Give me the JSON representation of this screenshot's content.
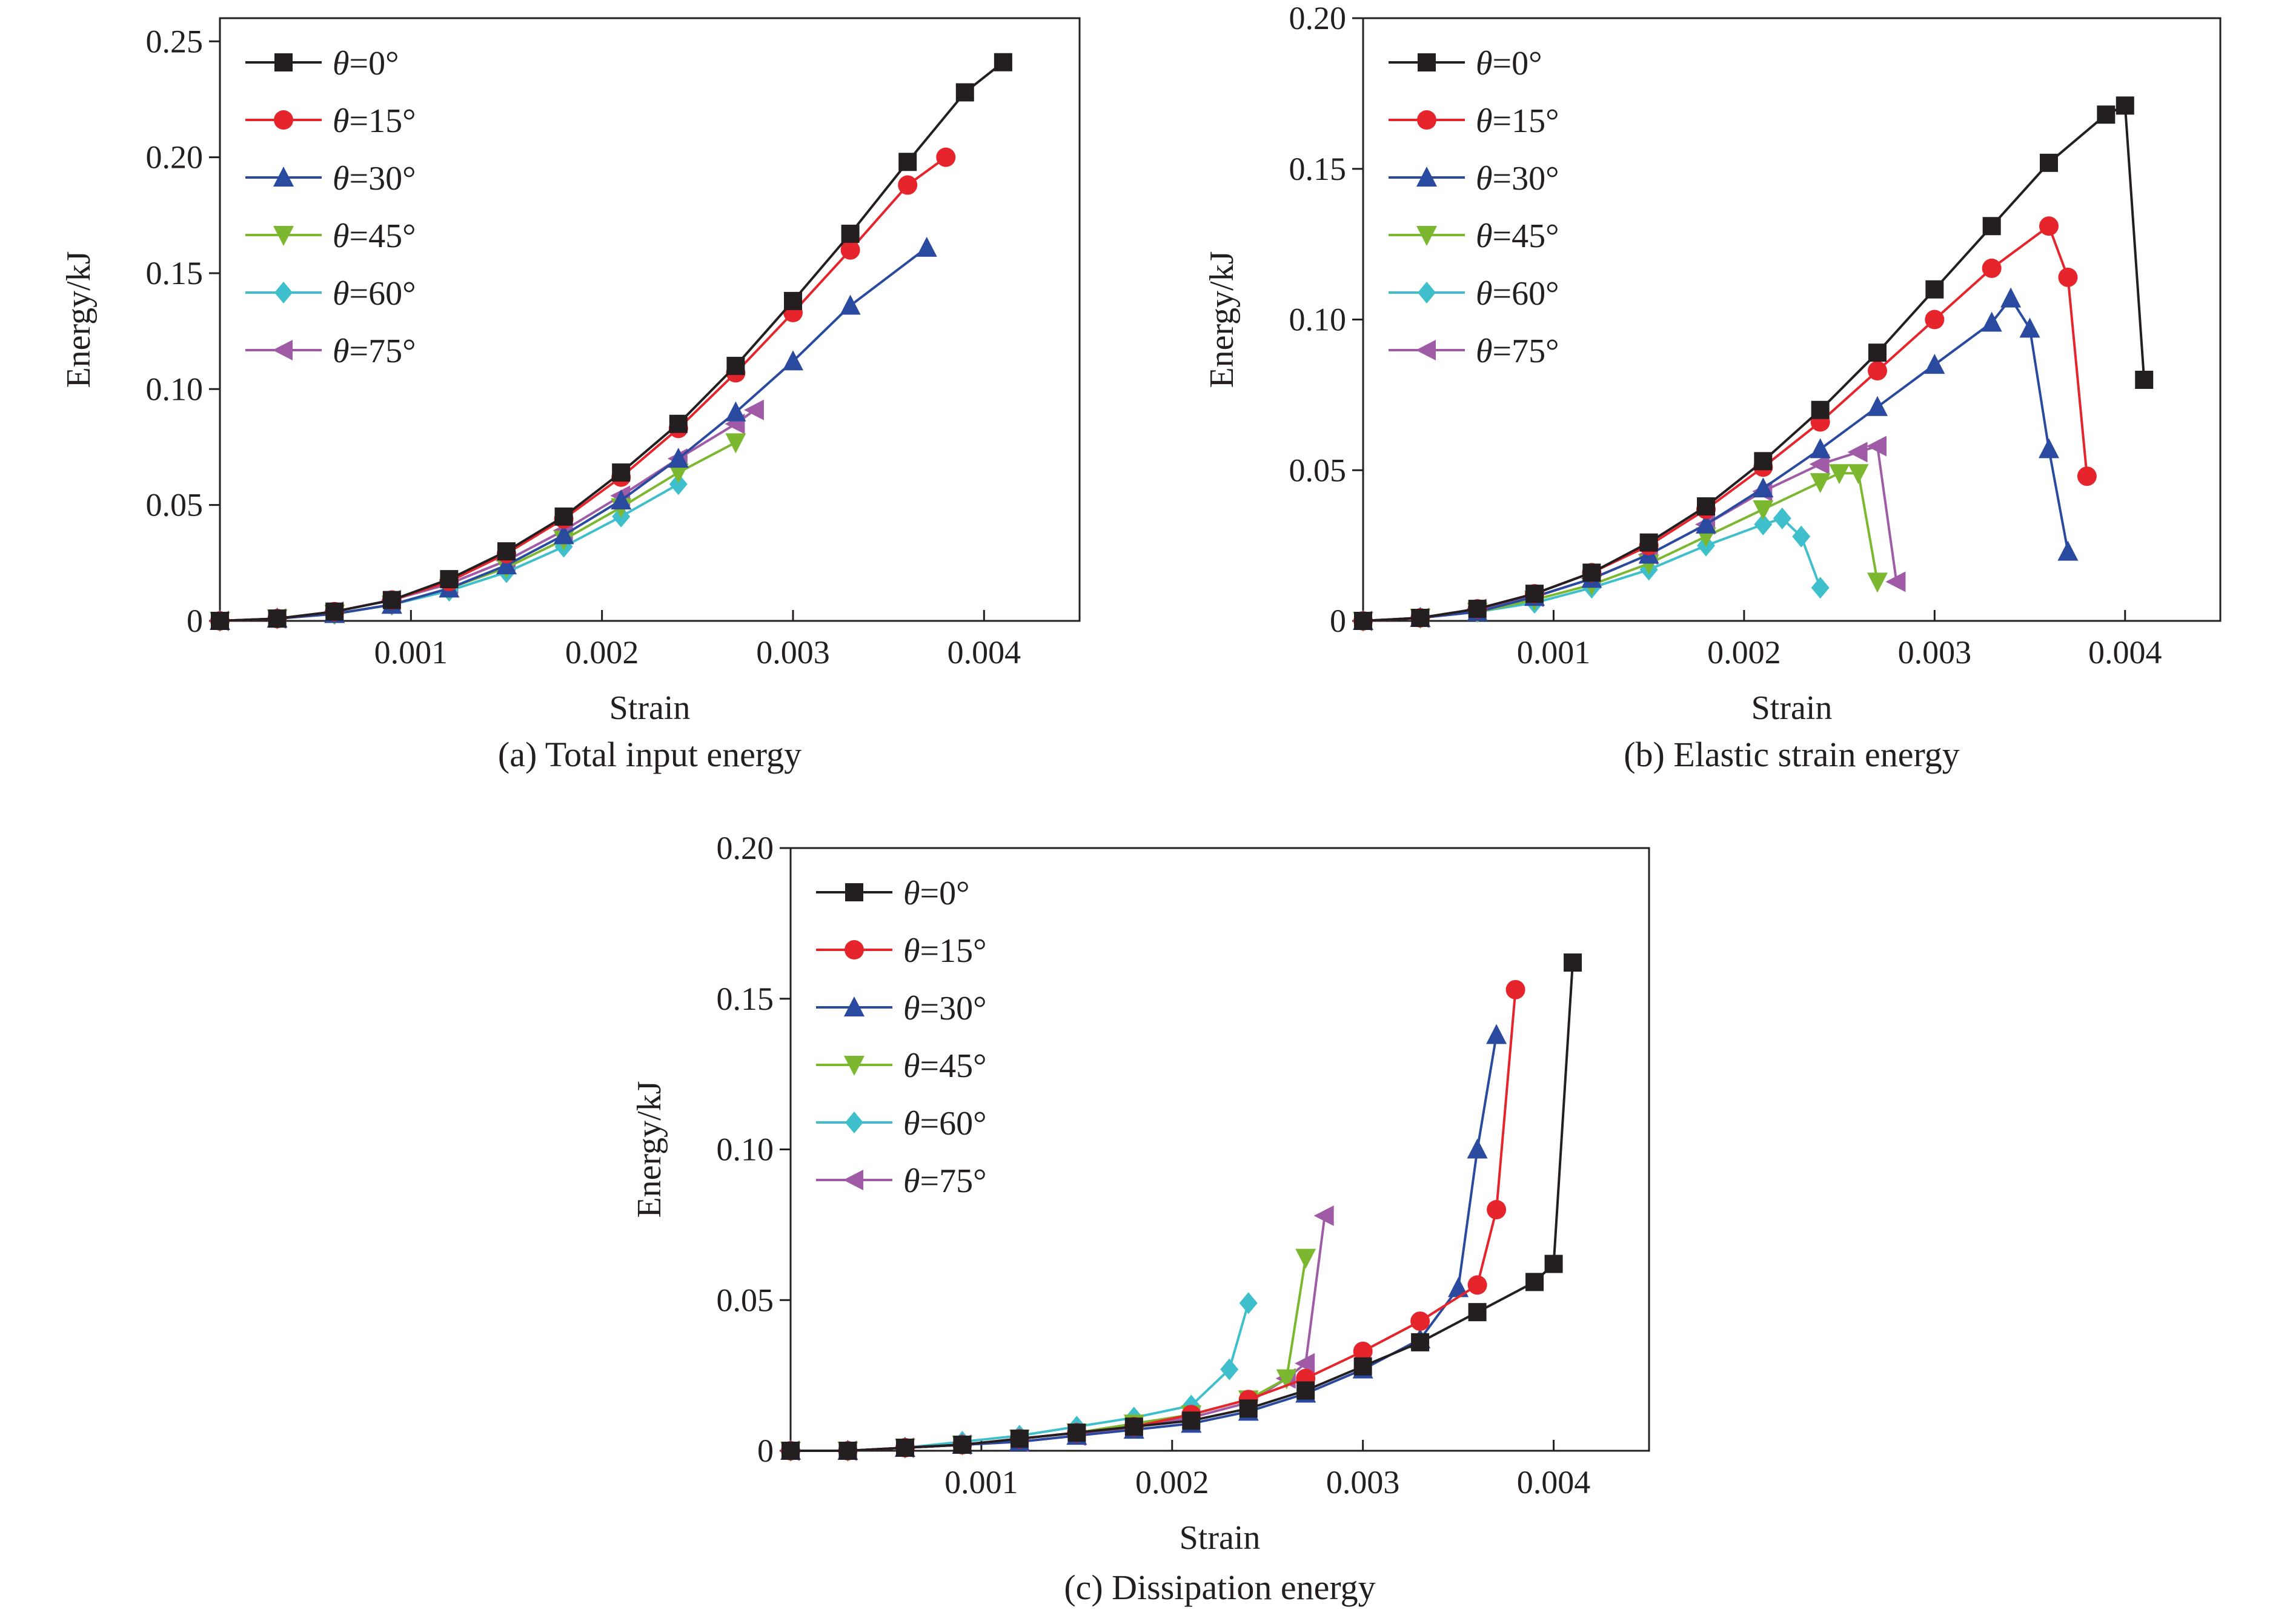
{
  "figure": {
    "charts": [
      {
        "id": "a",
        "caption": "(a) Total input energy",
        "xlabel": "Strain",
        "ylabel": "Energy/kJ",
        "xlim": [
          0,
          0.0045
        ],
        "ylim": [
          0,
          0.26
        ],
        "xticks": [
          "0.001",
          "0.002",
          "0.003",
          "0.004"
        ],
        "xtick_values": [
          0.001,
          0.002,
          0.003,
          0.004
        ],
        "yticks": [
          "0",
          "0.05",
          "0.10",
          "0.15",
          "0.20",
          "0.25"
        ],
        "ytick_values": [
          0,
          0.05,
          0.1,
          0.15,
          0.2,
          0.25
        ]
      },
      {
        "id": "b",
        "caption": "(b) Elastic strain energy",
        "xlabel": "Strain",
        "ylabel": "Energy/kJ",
        "xlim": [
          0,
          0.0045
        ],
        "ylim": [
          0,
          0.2
        ],
        "xticks": [
          "0.001",
          "0.002",
          "0.003",
          "0.004"
        ],
        "xtick_values": [
          0.001,
          0.002,
          0.003,
          0.004
        ],
        "yticks": [
          "0",
          "0.05",
          "0.10",
          "0.15",
          "0.20"
        ],
        "ytick_values": [
          0,
          0.05,
          0.1,
          0.15,
          0.2
        ]
      },
      {
        "id": "c",
        "caption": "(c) Dissipation energy",
        "xlabel": "Strain",
        "ylabel": "Energy/kJ",
        "xlim": [
          0,
          0.0045
        ],
        "ylim": [
          0,
          0.2
        ],
        "xticks": [
          "0.001",
          "0.002",
          "0.003",
          "0.004"
        ],
        "xtick_values": [
          0.001,
          0.002,
          0.003,
          0.004
        ],
        "yticks": [
          "0",
          "0.05",
          "0.10",
          "0.15",
          "0.20"
        ],
        "ytick_values": [
          0,
          0.05,
          0.1,
          0.15,
          0.2
        ]
      }
    ]
  },
  "chart_data": [
    {
      "type": "line",
      "title": "(a) Total input energy",
      "xlabel": "Strain",
      "ylabel": "Energy/kJ",
      "xlim": [
        0,
        0.0045
      ],
      "ylim": [
        0,
        0.26
      ],
      "grid": false,
      "legend": "top-left",
      "series": [
        {
          "name": "θ=0°",
          "symbol": "=0°",
          "color": "#231f20",
          "marker": "square",
          "x": [
            0.0,
            0.0003,
            0.0006,
            0.0009,
            0.0012,
            0.0015,
            0.0018,
            0.0021,
            0.0024,
            0.0027,
            0.003,
            0.0033,
            0.0036,
            0.0039,
            0.0041
          ],
          "y": [
            0.0,
            0.001,
            0.004,
            0.009,
            0.018,
            0.03,
            0.045,
            0.064,
            0.085,
            0.11,
            0.138,
            0.167,
            0.198,
            0.228,
            0.241
          ]
        },
        {
          "name": "θ=15°",
          "symbol": "=15°",
          "color": "#e6242b",
          "marker": "circle",
          "x": [
            0.0,
            0.0003,
            0.0006,
            0.0009,
            0.0012,
            0.0015,
            0.0018,
            0.0021,
            0.0024,
            0.0027,
            0.003,
            0.0033,
            0.0036,
            0.0038
          ],
          "y": [
            0.0,
            0.001,
            0.004,
            0.009,
            0.017,
            0.029,
            0.044,
            0.062,
            0.083,
            0.107,
            0.133,
            0.16,
            0.188,
            0.2
          ]
        },
        {
          "name": "θ=30°",
          "symbol": "=30°",
          "color": "#2a4a9f",
          "marker": "triangle-up",
          "x": [
            0.0,
            0.0003,
            0.0006,
            0.0009,
            0.0012,
            0.0015,
            0.0018,
            0.0021,
            0.0024,
            0.0027,
            0.003,
            0.0033,
            0.0037
          ],
          "y": [
            0.0,
            0.001,
            0.003,
            0.007,
            0.014,
            0.024,
            0.037,
            0.052,
            0.07,
            0.09,
            0.112,
            0.136,
            0.161
          ]
        },
        {
          "name": "θ=45°",
          "symbol": "=45°",
          "color": "#7cb82f",
          "marker": "triangle-down",
          "x": [
            0.0,
            0.0003,
            0.0006,
            0.0009,
            0.0012,
            0.0015,
            0.0018,
            0.0021,
            0.0024,
            0.0027
          ],
          "y": [
            0.0,
            0.001,
            0.003,
            0.007,
            0.014,
            0.023,
            0.035,
            0.049,
            0.064,
            0.077
          ]
        },
        {
          "name": "θ=60°",
          "symbol": "=60°",
          "color": "#3fbfcb",
          "marker": "diamond",
          "x": [
            0.0,
            0.0003,
            0.0006,
            0.0009,
            0.0012,
            0.0015,
            0.0018,
            0.0021,
            0.0024
          ],
          "y": [
            0.0,
            0.001,
            0.003,
            0.007,
            0.013,
            0.021,
            0.032,
            0.045,
            0.059
          ]
        },
        {
          "name": "θ=75°",
          "symbol": "=75°",
          "color": "#a05ba7",
          "marker": "triangle-left",
          "x": [
            0.0,
            0.0003,
            0.0006,
            0.0009,
            0.0012,
            0.0015,
            0.0018,
            0.0021,
            0.0024,
            0.0027,
            0.0028
          ],
          "y": [
            0.0,
            0.001,
            0.004,
            0.009,
            0.016,
            0.026,
            0.039,
            0.054,
            0.07,
            0.085,
            0.091
          ]
        }
      ]
    },
    {
      "type": "line",
      "title": "(b) Elastic strain energy",
      "xlabel": "Strain",
      "ylabel": "Energy/kJ",
      "xlim": [
        0,
        0.0045
      ],
      "ylim": [
        0,
        0.2
      ],
      "grid": false,
      "legend": "top-left",
      "series": [
        {
          "name": "θ=0°",
          "symbol": "=0°",
          "color": "#231f20",
          "marker": "square",
          "x": [
            0.0,
            0.0003,
            0.0006,
            0.0009,
            0.0012,
            0.0015,
            0.0018,
            0.0021,
            0.0024,
            0.0027,
            0.003,
            0.0033,
            0.0036,
            0.0039,
            0.004,
            0.0041
          ],
          "y": [
            0.0,
            0.001,
            0.004,
            0.009,
            0.016,
            0.026,
            0.038,
            0.053,
            0.07,
            0.089,
            0.11,
            0.131,
            0.152,
            0.168,
            0.171,
            0.08
          ]
        },
        {
          "name": "θ=15°",
          "symbol": "=15°",
          "color": "#e6242b",
          "marker": "circle",
          "x": [
            0.0,
            0.0003,
            0.0006,
            0.0009,
            0.0012,
            0.0015,
            0.0018,
            0.0021,
            0.0024,
            0.0027,
            0.003,
            0.0033,
            0.0036,
            0.0037,
            0.0038
          ],
          "y": [
            0.0,
            0.001,
            0.004,
            0.009,
            0.016,
            0.025,
            0.037,
            0.051,
            0.066,
            0.083,
            0.1,
            0.117,
            0.131,
            0.114,
            0.048
          ]
        },
        {
          "name": "θ=30°",
          "symbol": "=30°",
          "color": "#2a4a9f",
          "marker": "triangle-up",
          "x": [
            0.0,
            0.0003,
            0.0006,
            0.0009,
            0.0012,
            0.0015,
            0.0018,
            0.0021,
            0.0024,
            0.0027,
            0.003,
            0.0033,
            0.0034,
            0.0035,
            0.0036,
            0.0037
          ],
          "y": [
            0.0,
            0.001,
            0.003,
            0.008,
            0.014,
            0.022,
            0.032,
            0.044,
            0.057,
            0.071,
            0.085,
            0.099,
            0.107,
            0.097,
            0.057,
            0.023
          ]
        },
        {
          "name": "θ=45°",
          "symbol": "=45°",
          "color": "#7cb82f",
          "marker": "triangle-down",
          "x": [
            0.0,
            0.0003,
            0.0006,
            0.0009,
            0.0012,
            0.0015,
            0.0018,
            0.0021,
            0.0024,
            0.0025,
            0.0026,
            0.0027
          ],
          "y": [
            0.0,
            0.001,
            0.003,
            0.007,
            0.012,
            0.019,
            0.028,
            0.037,
            0.046,
            0.049,
            0.049,
            0.013
          ]
        },
        {
          "name": "θ=60°",
          "symbol": "=60°",
          "color": "#3fbfcb",
          "marker": "diamond",
          "x": [
            0.0,
            0.0003,
            0.0006,
            0.0009,
            0.0012,
            0.0015,
            0.0018,
            0.0021,
            0.0022,
            0.0023,
            0.0024
          ],
          "y": [
            0.0,
            0.001,
            0.003,
            0.006,
            0.011,
            0.017,
            0.025,
            0.032,
            0.034,
            0.028,
            0.011
          ]
        },
        {
          "name": "θ=75°",
          "symbol": "=75°",
          "color": "#a05ba7",
          "marker": "triangle-left",
          "x": [
            0.0,
            0.0003,
            0.0006,
            0.0009,
            0.0012,
            0.0015,
            0.0018,
            0.0021,
            0.0024,
            0.0026,
            0.0027,
            0.0028
          ],
          "y": [
            0.0,
            0.001,
            0.004,
            0.008,
            0.014,
            0.022,
            0.032,
            0.043,
            0.052,
            0.056,
            0.058,
            0.013
          ]
        }
      ]
    },
    {
      "type": "line",
      "title": "(c) Dissipation energy",
      "xlabel": "Strain",
      "ylabel": "Energy/kJ",
      "xlim": [
        0,
        0.0045
      ],
      "ylim": [
        0,
        0.2
      ],
      "grid": false,
      "legend": "top-left",
      "series": [
        {
          "name": "θ=0°",
          "symbol": "=0°",
          "color": "#231f20",
          "marker": "square",
          "x": [
            0.0,
            0.0003,
            0.0006,
            0.0009,
            0.0012,
            0.0015,
            0.0018,
            0.0021,
            0.0024,
            0.0027,
            0.003,
            0.0033,
            0.0036,
            0.0039,
            0.004,
            0.0041
          ],
          "y": [
            0.0,
            0.0,
            0.001,
            0.002,
            0.004,
            0.006,
            0.008,
            0.01,
            0.014,
            0.02,
            0.028,
            0.036,
            0.046,
            0.056,
            0.062,
            0.162
          ]
        },
        {
          "name": "θ=15°",
          "symbol": "=15°",
          "color": "#e6242b",
          "marker": "circle",
          "x": [
            0.0,
            0.0003,
            0.0006,
            0.0009,
            0.0012,
            0.0015,
            0.0018,
            0.0021,
            0.0024,
            0.0027,
            0.003,
            0.0033,
            0.0036,
            0.0037,
            0.0038
          ],
          "y": [
            0.0,
            0.0,
            0.001,
            0.002,
            0.004,
            0.006,
            0.008,
            0.012,
            0.017,
            0.024,
            0.033,
            0.043,
            0.055,
            0.08,
            0.153
          ]
        },
        {
          "name": "θ=30°",
          "symbol": "=30°",
          "color": "#2a4a9f",
          "marker": "triangle-up",
          "x": [
            0.0,
            0.0003,
            0.0006,
            0.0009,
            0.0012,
            0.0015,
            0.0018,
            0.0021,
            0.0024,
            0.0027,
            0.003,
            0.0033,
            0.0035,
            0.0036,
            0.0037
          ],
          "y": [
            0.0,
            0.0,
            0.001,
            0.002,
            0.003,
            0.005,
            0.007,
            0.009,
            0.013,
            0.019,
            0.027,
            0.037,
            0.054,
            0.1,
            0.138
          ]
        },
        {
          "name": "θ=45°",
          "symbol": "=45°",
          "color": "#7cb82f",
          "marker": "triangle-down",
          "x": [
            0.0,
            0.0003,
            0.0006,
            0.0009,
            0.0012,
            0.0015,
            0.0018,
            0.0021,
            0.0024,
            0.0026,
            0.0027
          ],
          "y": [
            0.0,
            0.0,
            0.001,
            0.002,
            0.004,
            0.006,
            0.009,
            0.012,
            0.017,
            0.024,
            0.064
          ]
        },
        {
          "name": "θ=60°",
          "symbol": "=60°",
          "color": "#3fbfcb",
          "marker": "diamond",
          "x": [
            0.0,
            0.0003,
            0.0006,
            0.0009,
            0.0012,
            0.0015,
            0.0018,
            0.0021,
            0.0023,
            0.0024
          ],
          "y": [
            0.0,
            0.0,
            0.001,
            0.003,
            0.005,
            0.008,
            0.011,
            0.015,
            0.027,
            0.049
          ]
        },
        {
          "name": "θ=75°",
          "symbol": "=75°",
          "color": "#a05ba7",
          "marker": "triangle-left",
          "x": [
            0.0,
            0.0003,
            0.0006,
            0.0009,
            0.0012,
            0.0015,
            0.0018,
            0.0021,
            0.0024,
            0.0026,
            0.0027,
            0.0028
          ],
          "y": [
            0.0,
            0.0,
            0.001,
            0.002,
            0.003,
            0.005,
            0.008,
            0.011,
            0.016,
            0.024,
            0.029,
            0.078
          ]
        }
      ]
    }
  ]
}
